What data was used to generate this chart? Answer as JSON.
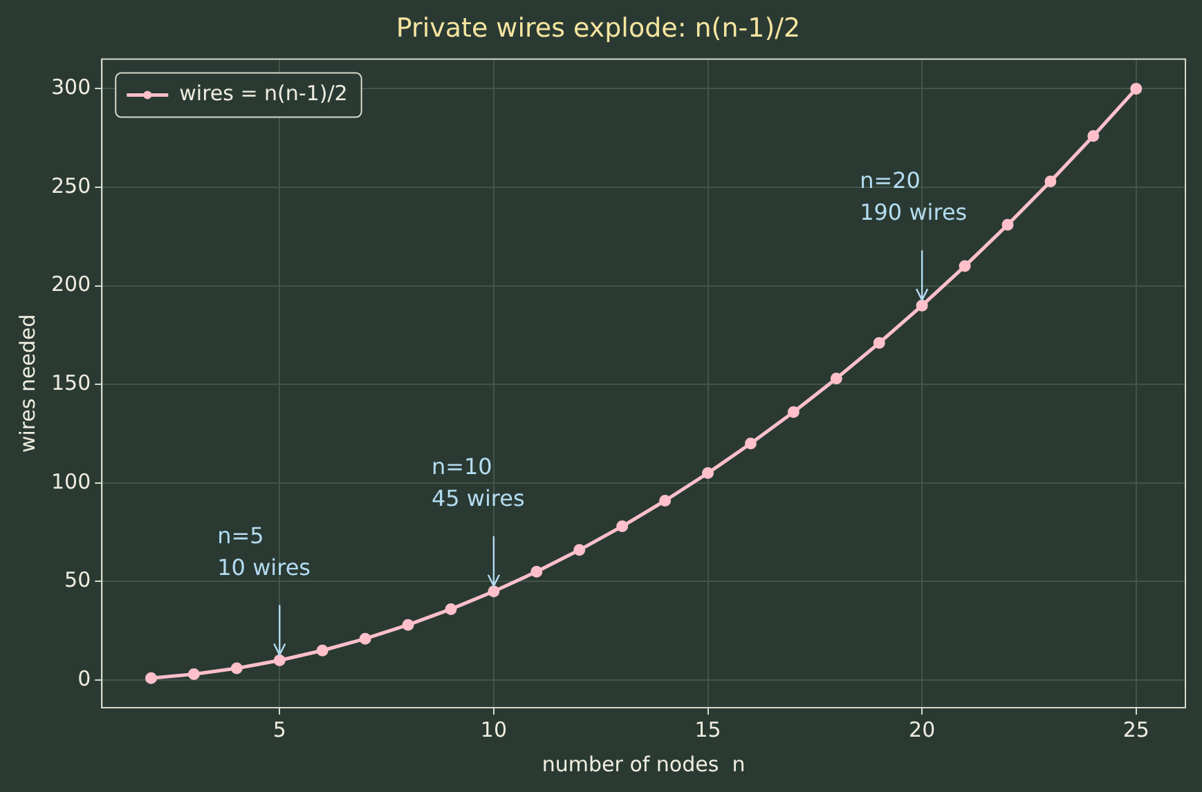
{
  "chart_data": {
    "type": "line",
    "title": "Private wires explode: n(n-1)/2",
    "xlabel": "number of nodes  n",
    "ylabel": "wires needed",
    "x": [
      2,
      3,
      4,
      5,
      6,
      7,
      8,
      9,
      10,
      11,
      12,
      13,
      14,
      15,
      16,
      17,
      18,
      19,
      20,
      21,
      22,
      23,
      24,
      25
    ],
    "series": [
      {
        "name": "wires = n(n-1)/2",
        "color": "#ffc0cb",
        "values": [
          1,
          3,
          6,
          10,
          15,
          21,
          28,
          36,
          45,
          55,
          66,
          78,
          91,
          105,
          120,
          136,
          153,
          171,
          190,
          210,
          231,
          253,
          276,
          300
        ]
      }
    ],
    "xlim": [
      0.85,
      26.15
    ],
    "xticks": [
      5,
      10,
      15,
      20,
      25
    ],
    "ylim": [
      -14,
      315
    ],
    "yticks": [
      0,
      50,
      100,
      150,
      200,
      250,
      300
    ],
    "annotations": [
      {
        "text": "n=5\n10 wires",
        "x": 5,
        "y": 10
      },
      {
        "text": "n=10\n45 wires",
        "x": 10,
        "y": 45
      },
      {
        "text": "n=20\n190 wires",
        "x": 20,
        "y": 190
      }
    ],
    "grid": true,
    "legend": "top left",
    "marker": "circle",
    "line_style": "solid"
  }
}
